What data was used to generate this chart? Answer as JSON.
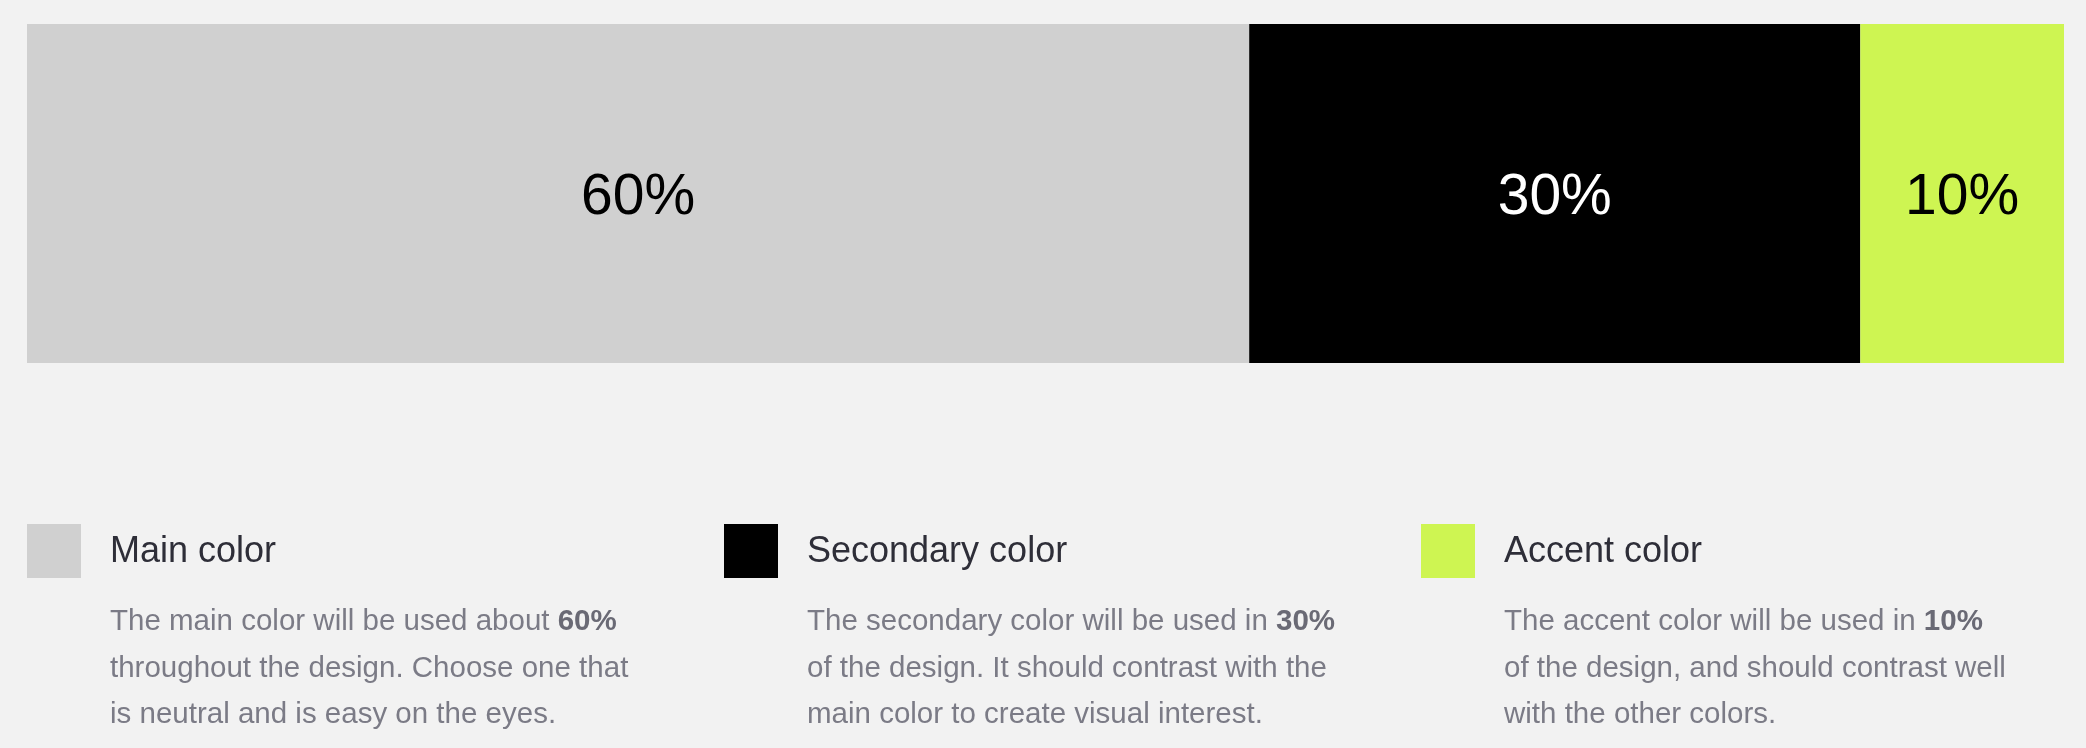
{
  "chart_data": {
    "type": "bar",
    "orientation": "horizontal",
    "stacked": true,
    "categories": [
      null
    ],
    "xlim": [
      0,
      100
    ],
    "legend": "bottom",
    "series": [
      {
        "name": "Main color",
        "color": "#d0d0d0",
        "values": [
          60
        ],
        "value_labels": [
          "60%"
        ]
      },
      {
        "name": "Secondary color",
        "color": "#000000",
        "values": [
          30
        ],
        "value_labels": [
          "30%"
        ]
      },
      {
        "name": "Accent color",
        "color": "#cef552",
        "values": [
          10
        ],
        "value_labels": [
          "10%"
        ]
      }
    ],
    "annotations": [
      "The main color will be used about 60%\nthroughout the design. Choose one that is neutral and is easy on the eyes.",
      "The secondary color will be used in 30%\nof the design. It should contrast with the main color to create visual interest.",
      "The accent color will be used in 10%\nof the design, and should contrast well with the other colors."
    ]
  }
}
